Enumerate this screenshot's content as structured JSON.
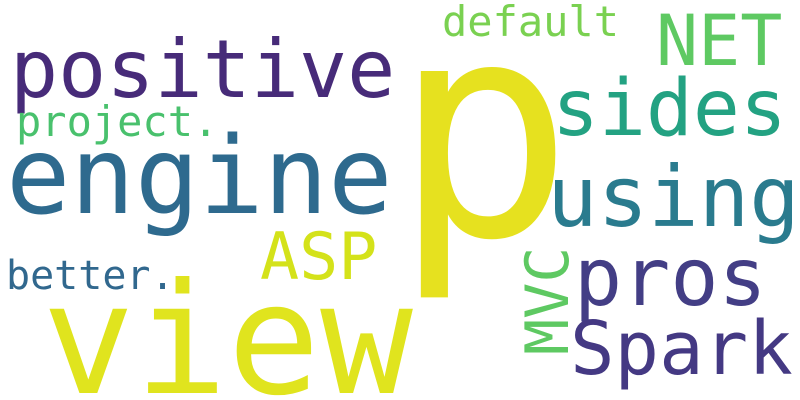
{
  "words": [
    {
      "key": "p",
      "text": "p",
      "color": "#e6e11f"
    },
    {
      "key": "view",
      "text": "view",
      "color": "#e0e41e"
    },
    {
      "key": "engine",
      "text": "engine",
      "color": "#2e6a8e"
    },
    {
      "key": "positive",
      "text": "positive",
      "color": "#472b79"
    },
    {
      "key": "using",
      "text": "using",
      "color": "#2a7b8e"
    },
    {
      "key": "sides",
      "text": "sides",
      "color": "#23a282"
    },
    {
      "key": "NET",
      "text": "NET",
      "color": "#5ec962"
    },
    {
      "key": "default",
      "text": "default",
      "color": "#7ad151"
    },
    {
      "key": "project",
      "text": "project.",
      "color": "#49c16d"
    },
    {
      "key": "ASP",
      "text": "ASP",
      "color": "#d4e21a"
    },
    {
      "key": "better",
      "text": "better.",
      "color": "#31688e"
    },
    {
      "key": "MVC",
      "text": "MVC",
      "color": "#5ec962"
    },
    {
      "key": "pros",
      "text": "pros",
      "color": "#433e85"
    },
    {
      "key": "Spark",
      "text": "Spark",
      "color": "#443983"
    }
  ]
}
